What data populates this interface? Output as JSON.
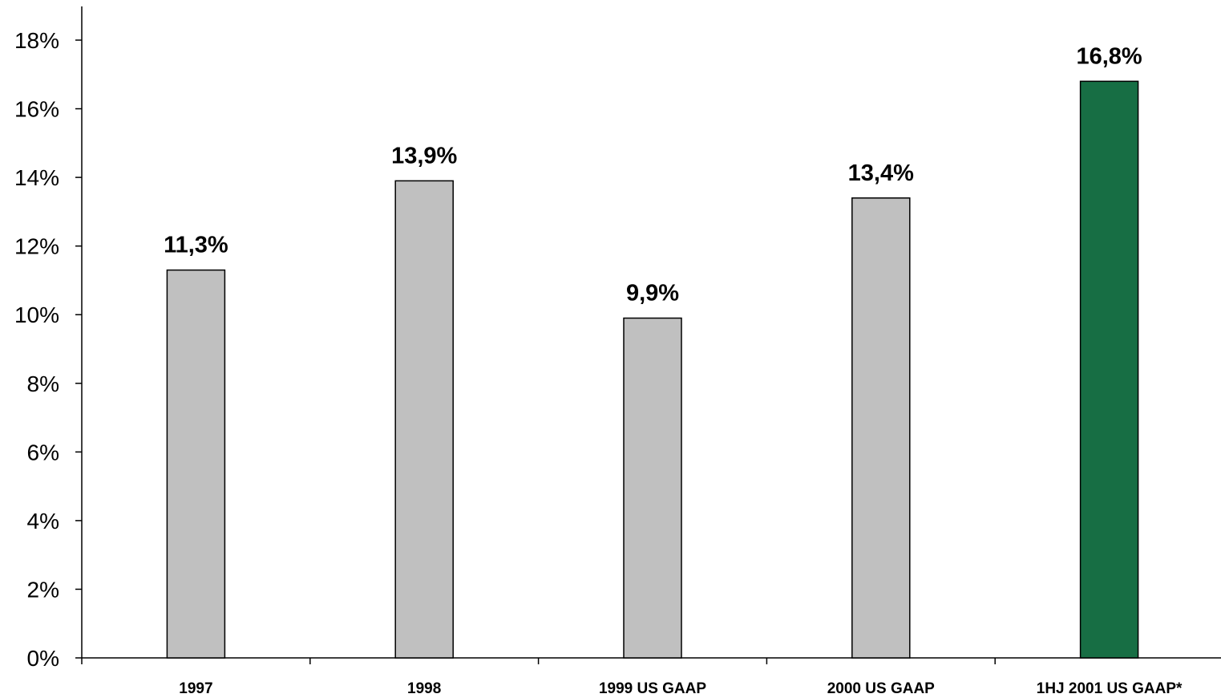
{
  "chart_data": {
    "type": "bar",
    "title": "",
    "xlabel": "",
    "ylabel": "",
    "categories": [
      "1997",
      "1998",
      "1999 US  GAAP",
      "2000 US GAAP",
      "1HJ 2001 US GAAP*"
    ],
    "values": [
      11.3,
      13.9,
      9.9,
      13.4,
      16.8
    ],
    "value_labels": [
      "11,3%",
      "13,9%",
      "9,9%",
      "13,4%",
      "16,8%"
    ],
    "bar_colors": [
      "#c0c0c0",
      "#c0c0c0",
      "#c0c0c0",
      "#c0c0c0",
      "#176e44"
    ],
    "ylim": [
      0,
      18
    ],
    "yticks": [
      0,
      2,
      4,
      6,
      8,
      10,
      12,
      14,
      16,
      18
    ],
    "ytick_labels": [
      "0%",
      "2%",
      "4%",
      "6%",
      "8%",
      "10%",
      "12%",
      "14%",
      "16%",
      "18%"
    ],
    "grid": false,
    "legend": "none"
  }
}
